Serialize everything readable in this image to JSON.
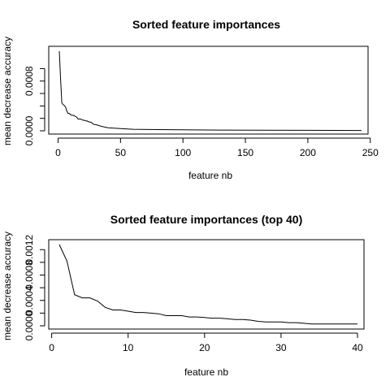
{
  "chart_data": [
    {
      "type": "line",
      "title": "Sorted feature importances",
      "xlabel": "feature nb",
      "ylabel": "mean decrease accuracy",
      "xlim": [
        1,
        243
      ],
      "ylim": [
        0,
        0.0011
      ],
      "xticks": [
        0,
        50,
        100,
        150,
        200,
        250
      ],
      "yticks": [
        0,
        0.0002,
        0.0004,
        0.0006,
        0.0008,
        0.001
      ],
      "ytick_labels": [
        "0.0000",
        "",
        "",
        "",
        "0.0008",
        ""
      ],
      "grid": false,
      "series": [
        {
          "x": [
            1,
            2,
            3,
            4,
            5,
            6,
            7,
            8,
            9,
            10,
            11,
            12,
            13,
            14,
            15,
            16,
            17,
            18,
            19,
            20,
            21,
            22,
            23,
            24,
            25,
            26,
            27,
            28,
            29,
            30,
            35,
            40,
            50,
            60,
            80,
            100,
            130,
            160,
            200,
            243
          ],
          "values": [
            0.00128,
            0.00085,
            0.00045,
            0.00042,
            0.00041,
            0.00038,
            0.00032,
            0.00028,
            0.00028,
            0.00026,
            0.00025,
            0.00025,
            0.00024,
            0.00023,
            0.00022,
            0.00019,
            0.00019,
            0.00019,
            0.00018,
            0.00017,
            0.00017,
            0.00016,
            0.00016,
            0.00015,
            0.00014,
            0.00014,
            0.00013,
            0.00011,
            0.0001,
            0.0001,
            7e-05,
            5e-05,
            3.5e-05,
            2.5e-05,
            2e-05,
            1.6e-05,
            1.2e-05,
            1e-05,
            8e-06,
            5e-06
          ]
        }
      ]
    },
    {
      "type": "line",
      "title": "Sorted feature importances (top 40)",
      "xlabel": "feature nb",
      "ylabel": "mean decrease accuracy",
      "xlim": [
        1,
        40
      ],
      "ylim": [
        0,
        0.0013
      ],
      "xticks": [
        0,
        10,
        20,
        30,
        40
      ],
      "yticks": [
        0,
        0.0002,
        0.0004,
        0.0006,
        0.0008,
        0.001,
        0.0012
      ],
      "ytick_labels": [
        "0.0000",
        "",
        "0.0004",
        "",
        "0.0008",
        "",
        "0.0012"
      ],
      "grid": false,
      "series": [
        {
          "x": [
            1,
            2,
            3,
            4,
            5,
            6,
            7,
            8,
            9,
            10,
            11,
            12,
            13,
            14,
            15,
            16,
            17,
            18,
            19,
            20,
            21,
            22,
            23,
            24,
            25,
            26,
            27,
            28,
            29,
            30,
            31,
            32,
            33,
            34,
            35,
            36,
            37,
            38,
            39,
            40
          ],
          "values": [
            0.00128,
            0.00102,
            0.00049,
            0.00044,
            0.00044,
            0.00039,
            0.00029,
            0.00025,
            0.00025,
            0.00023,
            0.00021,
            0.00021,
            0.0002,
            0.00019,
            0.00016,
            0.00016,
            0.00016,
            0.00014,
            0.00014,
            0.00013,
            0.00012,
            0.00012,
            0.00011,
            0.0001,
            0.0001,
            9e-05,
            7e-05,
            6e-05,
            6e-05,
            6e-05,
            5e-05,
            5e-05,
            4e-05,
            3e-05,
            3e-05,
            3e-05,
            3e-05,
            3e-05,
            3e-05,
            3e-05
          ]
        }
      ]
    }
  ]
}
